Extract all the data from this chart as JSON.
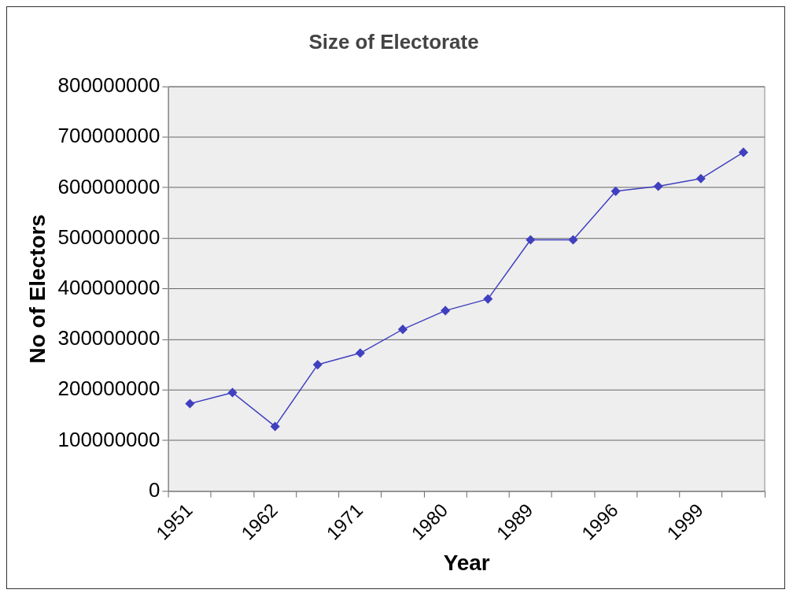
{
  "chart_data": {
    "type": "line",
    "title": "Size of Electorate",
    "xlabel": "Year",
    "ylabel": "No of Electors",
    "categories": [
      "1951",
      null,
      "1962",
      null,
      "1971",
      null,
      "1980",
      null,
      "1989",
      null,
      "1996",
      null,
      "1999",
      null
    ],
    "series": [
      {
        "color": "#4040c0",
        "values": [
          173000000,
          195000000,
          128000000,
          250000000,
          273000000,
          320000000,
          357000000,
          380000000,
          497000000,
          497000000,
          593000000,
          603000000,
          618000000,
          670000000
        ]
      }
    ],
    "ylim": [
      0,
      800000000
    ],
    "yticks": [
      0,
      100000000,
      200000000,
      300000000,
      400000000,
      500000000,
      600000000,
      700000000,
      800000000
    ],
    "grid": "y",
    "legend": false,
    "marker": "diamond",
    "line_style": "solid"
  }
}
